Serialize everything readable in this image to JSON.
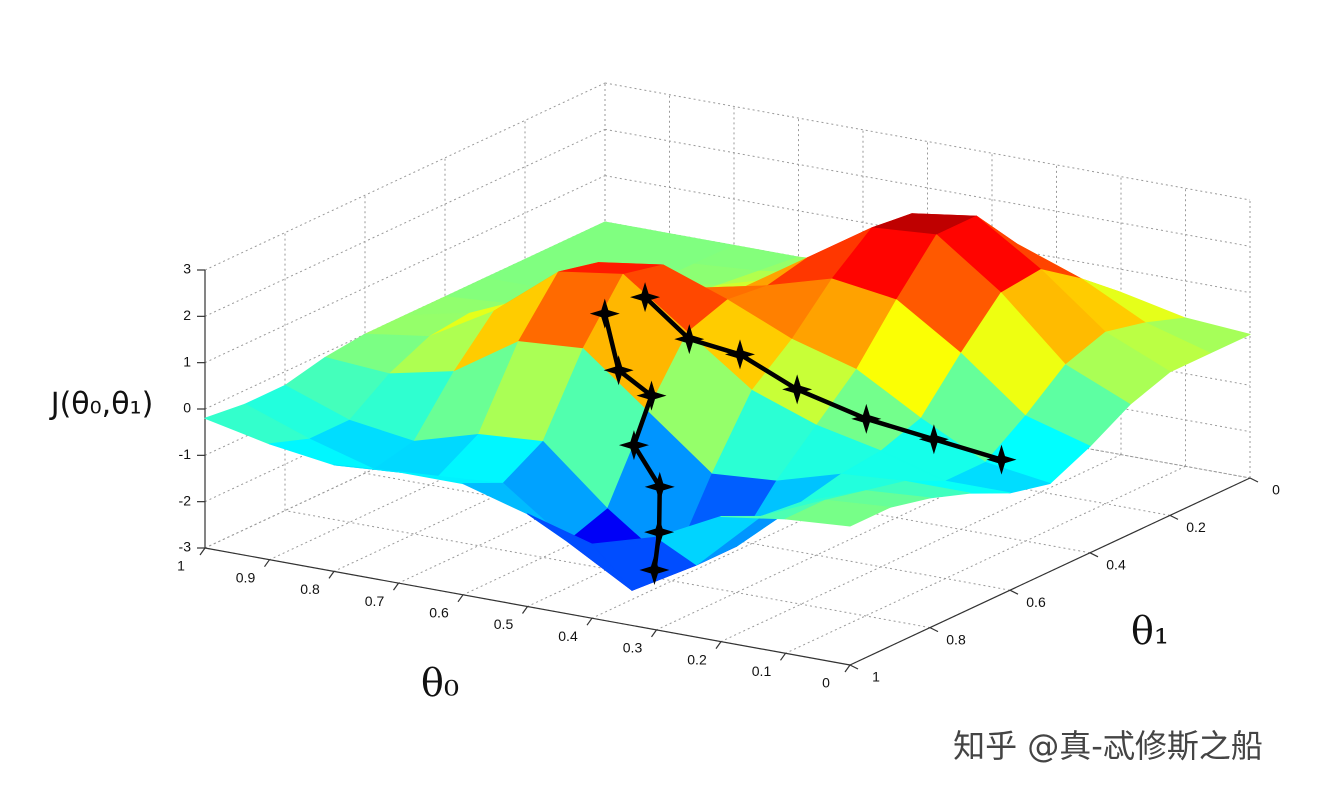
{
  "chart_data": {
    "type": "surface",
    "xlabel": "θ₀",
    "ylabel": "θ₁",
    "zlabel": "J(θ₀,θ₁)",
    "xlim": [
      0,
      1
    ],
    "ylim": [
      0,
      1
    ],
    "zlim": [
      -3,
      3
    ],
    "xticks": [
      0,
      0.1,
      0.2,
      0.3,
      0.4,
      0.5,
      0.6,
      0.7,
      0.8,
      0.9,
      1
    ],
    "yticks": [
      0,
      0.2,
      0.4,
      0.6,
      0.8,
      1
    ],
    "zticks": [
      -3,
      -2,
      -1,
      0,
      1,
      2,
      3
    ],
    "grid": true,
    "colormap": "jet",
    "surface": {
      "x": [
        0,
        0.1,
        0.2,
        0.3,
        0.4,
        0.5,
        0.6,
        0.7,
        0.8,
        0.9,
        1
      ],
      "y": [
        0,
        0.1,
        0.2,
        0.3,
        0.4,
        0.5,
        0.6,
        0.7,
        0.8,
        0.9,
        1
      ],
      "z": [
        [
          0.1,
          0.1,
          0.1,
          -0.2,
          -0.7,
          -1.1,
          -0.9,
          -0.5,
          -0.2,
          0,
          0
        ],
        [
          0.2,
          0.5,
          0.7,
          0.4,
          -0.3,
          -0.9,
          -0.9,
          -0.5,
          -0.3,
          -0.1,
          -0.1
        ],
        [
          0.5,
          1.2,
          1.8,
          1.7,
          0.8,
          -0.2,
          -0.5,
          -0.6,
          -0.8,
          -0.7,
          -0.3
        ],
        [
          0.7,
          1.7,
          2.7,
          2.7,
          1.7,
          0.6,
          -0.2,
          -1.0,
          -2.0,
          -2.0,
          -1.0
        ],
        [
          0.6,
          1.5,
          2.5,
          2.6,
          1.9,
          1.0,
          0.3,
          -1.1,
          -2.7,
          -2.8,
          -1.4
        ],
        [
          0.4,
          0.9,
          1.5,
          1.7,
          1.5,
          1.6,
          1.3,
          0.0,
          -1.7,
          -2.0,
          -1.0
        ],
        [
          0.1,
          0.3,
          0.6,
          0.8,
          1.2,
          2.1,
          2.3,
          1.1,
          -0.5,
          -1.0,
          -0.6
        ],
        [
          0.0,
          0.1,
          0.2,
          0.3,
          0.9,
          1.9,
          2.1,
          1.0,
          -0.6,
          -1.1,
          -0.6
        ],
        [
          0.0,
          0.0,
          0.0,
          0.1,
          0.4,
          0.9,
          1.0,
          0.1,
          -1.0,
          -1.2,
          -0.7
        ],
        [
          0,
          0,
          0,
          0,
          0.1,
          0.3,
          0.2,
          -0.2,
          -0.8,
          -0.8,
          -0.5
        ],
        [
          0,
          0,
          0,
          0,
          0,
          0,
          0,
          -0.1,
          -0.3,
          -0.3,
          -0.2
        ]
      ]
    },
    "series": [
      {
        "color": "#000000",
        "x": [
          0.56,
          0.52,
          0.5,
          0.49,
          0.45,
          0.42,
          0.39
        ],
        "y": [
          0.71,
          0.74,
          0.69,
          0.75,
          0.75,
          0.8,
          0.86
        ],
        "z": [
          2.0,
          1.0,
          0.3,
          -0.5,
          -1.3,
          -2.0,
          -2.5
        ]
      },
      {
        "color": "#000000",
        "x": [
          0.51,
          0.46,
          0.4,
          0.33,
          0.26,
          0.18,
          0.1
        ],
        "y": [
          0.69,
          0.66,
          0.63,
          0.6,
          0.54,
          0.5,
          0.46
        ],
        "z": [
          2.4,
          1.5,
          1.2,
          0.5,
          -0.2,
          -0.6,
          -1.0
        ]
      }
    ]
  },
  "watermark": "知乎 @真-忒修斯之船"
}
